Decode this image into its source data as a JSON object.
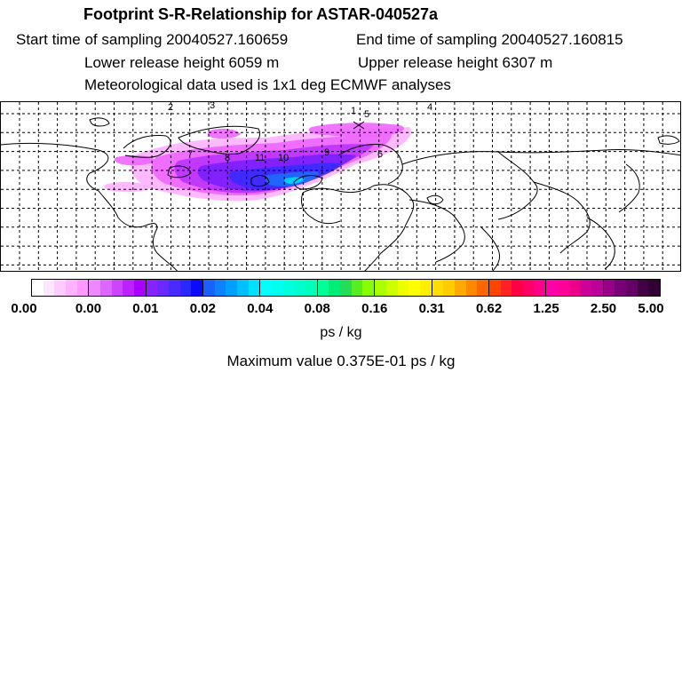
{
  "header": {
    "title": "Footprint S-R-Relationship for ASTAR-040527a",
    "start_time": "Start time of sampling 20040527.160659",
    "end_time": "End time of sampling 20040527.160815",
    "lower_height": "Lower release height 6059 m",
    "upper_height": "Upper release height 6307 m",
    "met_data": "Meteorological data used is 1x1 deg ECMWF analyses"
  },
  "map": {
    "trajectory_labels": [
      "2",
      "3",
      "1",
      "5",
      "4",
      "7",
      "8",
      "9",
      "10",
      "11",
      "6"
    ],
    "plume_colors": [
      "#ffb3ff",
      "#ee66ff",
      "#bb33ff",
      "#7a1fff",
      "#3a2bff",
      "#1e6bff",
      "#00d8ff"
    ]
  },
  "colorbar": {
    "tick_labels": [
      "0.00",
      "0.00",
      "0.01",
      "0.02",
      "0.04",
      "0.08",
      "0.16",
      "0.31",
      "0.62",
      "1.25",
      "2.50",
      "5.00"
    ],
    "colors": [
      "#ffffff",
      "#ffe6ff",
      "#ffccff",
      "#ffb3ff",
      "#ff99ff",
      "#ee88ff",
      "#dd66ff",
      "#cc44ff",
      "#bb22ff",
      "#aa00ff",
      "#8a22ff",
      "#6a2aff",
      "#4a2aff",
      "#2a2aff",
      "#0a0aff",
      "#1a60ff",
      "#1080ff",
      "#00a0ff",
      "#00c0ff",
      "#00e0ff",
      "#00ffff",
      "#00ffee",
      "#00ffdd",
      "#00ffcc",
      "#00ffbb",
      "#00ff99",
      "#00ee77",
      "#22dd55",
      "#55ee22",
      "#88ff00",
      "#aaff00",
      "#ccff00",
      "#eeff00",
      "#ffff00",
      "#ffee00",
      "#ffdd00",
      "#ffcc00",
      "#ffaa00",
      "#ff8800",
      "#ff6600",
      "#ff4400",
      "#ff2222",
      "#ff0044",
      "#ff0066",
      "#ff0088",
      "#ff00aa",
      "#ff0099",
      "#ee0088",
      "#cc0099",
      "#bb0099",
      "#990088",
      "#770077",
      "#660066",
      "#440044",
      "#330033"
    ],
    "unit": "ps / kg"
  },
  "maximum": "Maximum value  0.375E-01 ps / kg"
}
